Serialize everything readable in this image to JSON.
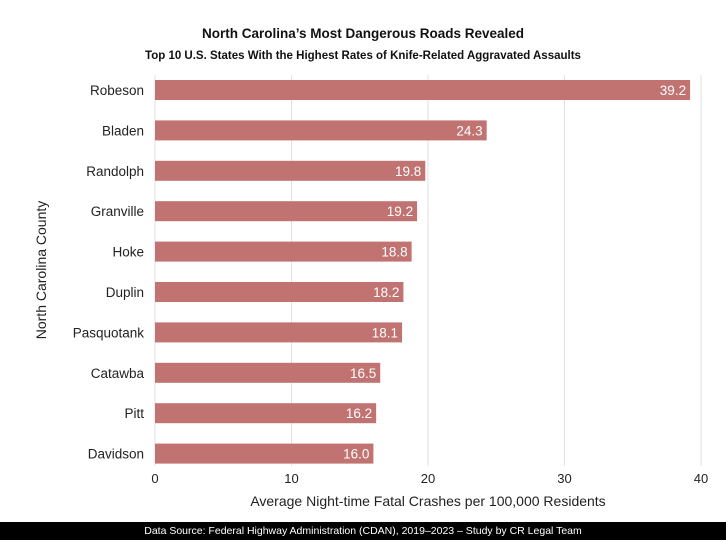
{
  "chart_data": {
    "type": "bar",
    "orientation": "horizontal",
    "title": "North Carolina’s Most Dangerous Roads Revealed",
    "subtitle": "Top 10 U.S. States With the Highest Rates of Knife-Related Aggravated Assaults",
    "xlabel": "Average Night-time Fatal Crashes per 100,000 Residents",
    "ylabel": "North Carolina County",
    "categories": [
      "Robeson",
      "Bladen",
      "Randolph",
      "Granville",
      "Hoke",
      "Duplin",
      "Pasquotank",
      "Catawba",
      "Pitt",
      "Davidson"
    ],
    "values": [
      39.2,
      24.3,
      19.8,
      19.2,
      18.8,
      18.2,
      18.1,
      16.5,
      16.2,
      16.0
    ],
    "value_labels": [
      "39.2",
      "24.3",
      "19.8",
      "19.2",
      "18.8",
      "18.2",
      "18.1",
      "16.5",
      "16.2",
      "16.0"
    ],
    "xlim": [
      0,
      40
    ],
    "xticks": [
      "0",
      "10",
      "20",
      "30",
      "40"
    ],
    "xtick_values": [
      0,
      10,
      20,
      30,
      40
    ],
    "grid": "vertical",
    "bar_color": "#c07370"
  },
  "footer": {
    "source": "Data Source: Federal Highway Administration (CDAN), 2019–2023 – Study by CR Legal Team"
  }
}
